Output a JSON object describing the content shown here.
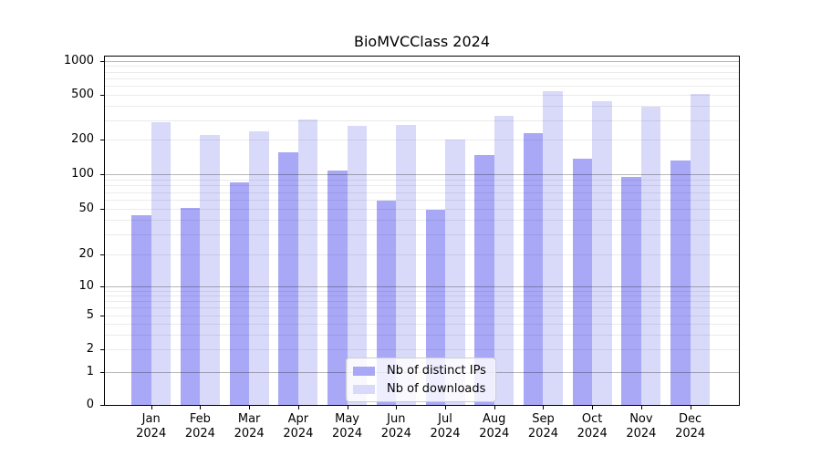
{
  "title": "BioMVCClass 2024",
  "chart_data": {
    "type": "bar",
    "title": "BioMVCClass 2024",
    "x_categories": [
      "Jan",
      "Feb",
      "Mar",
      "Apr",
      "May",
      "Jun",
      "Jul",
      "Aug",
      "Sep",
      "Oct",
      "Nov",
      "Dec"
    ],
    "x_year": "2024",
    "series": [
      {
        "name": "Nb of distinct IPs",
        "color": "#a8a8f7",
        "values": [
          44,
          51,
          85,
          155,
          108,
          59,
          49,
          147,
          229,
          136,
          95,
          132
        ]
      },
      {
        "name": "Nb of downloads",
        "color": "#d9d9fa",
        "values": [
          285,
          220,
          237,
          305,
          265,
          273,
          202,
          325,
          545,
          439,
          394,
          509
        ]
      }
    ],
    "y_ticks": [
      0,
      1,
      2,
      5,
      10,
      20,
      50,
      100,
      200,
      500,
      1000
    ],
    "y_scale": "log-like",
    "ylim": [
      0,
      1100
    ],
    "grid": "horizontal major and log-minor lines",
    "legend_position": "lower center",
    "colors": {
      "ips_bar": "#a8a8f7",
      "downloads_bar": "#d9d9fa",
      "grid_major": "#ababab",
      "grid_minor": "#ededed",
      "axis": "#000000"
    }
  }
}
